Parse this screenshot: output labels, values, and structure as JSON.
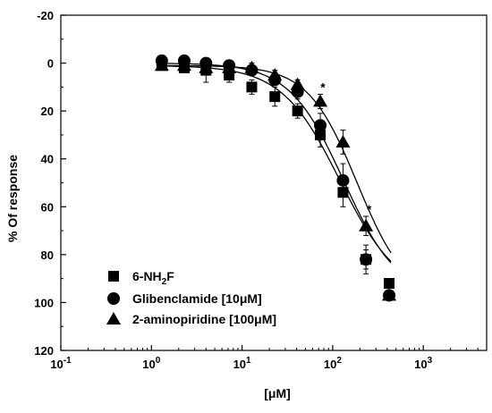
{
  "chart_data": {
    "type": "scatter",
    "xscale": "log",
    "xlim": [
      0.1,
      5000
    ],
    "ylim": [
      120,
      -20
    ],
    "y_inverted": true,
    "xlabel": "[μM]",
    "ylabel": "% Of response",
    "x_ticks": [
      {
        "value": 0.1,
        "base": "10",
        "exp": "-1"
      },
      {
        "value": 1,
        "base": "10",
        "exp": "0"
      },
      {
        "value": 10,
        "base": "10",
        "exp": "1"
      },
      {
        "value": 100,
        "base": "10",
        "exp": "2"
      },
      {
        "value": 1000,
        "base": "10",
        "exp": "3"
      }
    ],
    "y_ticks": [
      "-20",
      "0",
      "20",
      "40",
      "60",
      "80",
      "100",
      "120"
    ],
    "legend_position": "bottom-left",
    "series": [
      {
        "name": "6-NH2F",
        "legend_parts": {
          "pre": "6-NH",
          "sub": "2",
          "post": "F"
        },
        "marker": "square",
        "x": [
          1.3,
          2.3,
          4.0,
          7.2,
          12.8,
          23,
          41,
          73,
          130,
          233,
          420
        ],
        "y": [
          1,
          2,
          3,
          5,
          10,
          14,
          20,
          30,
          54,
          82,
          92
        ],
        "err": [
          1.5,
          2,
          5,
          3,
          3,
          4,
          3,
          5,
          6,
          6,
          2
        ],
        "fit": {
          "top": 1,
          "bottom": 97,
          "log_ic50": 2.08,
          "hill": 1.35
        }
      },
      {
        "name": "Glibenclamide [10μM]",
        "marker": "circle",
        "x": [
          1.3,
          2.3,
          4.0,
          7.2,
          12.8,
          23,
          41,
          73,
          130,
          233,
          420
        ],
        "y": [
          -1,
          -1,
          0,
          1,
          3,
          7,
          12,
          26,
          49,
          82,
          97
        ],
        "err": [
          1,
          1.5,
          2,
          2,
          2,
          2,
          3,
          5,
          7,
          4,
          2
        ],
        "fit": {
          "top": 0,
          "bottom": 98,
          "log_ic50": 2.12,
          "hill": 1.45
        }
      },
      {
        "name": "2-aminopiridine [100μM]",
        "marker": "triangle",
        "x": [
          1.3,
          2.3,
          4.0,
          7.2,
          12.8,
          23,
          41,
          73,
          130,
          233,
          420
        ],
        "y": [
          1,
          1,
          2,
          2,
          2,
          5,
          9,
          16,
          33,
          68,
          97
        ],
        "err": [
          1,
          1,
          1.5,
          1.5,
          2,
          2,
          2,
          3,
          5,
          4,
          2
        ],
        "fit": {
          "top": 1,
          "bottom": 99,
          "log_ic50": 2.27,
          "hill": 1.6
        }
      }
    ],
    "annotations": [
      {
        "text": "*",
        "x": 78,
        "y": 10
      },
      {
        "text": "*",
        "x": 252,
        "y": 61
      }
    ]
  }
}
